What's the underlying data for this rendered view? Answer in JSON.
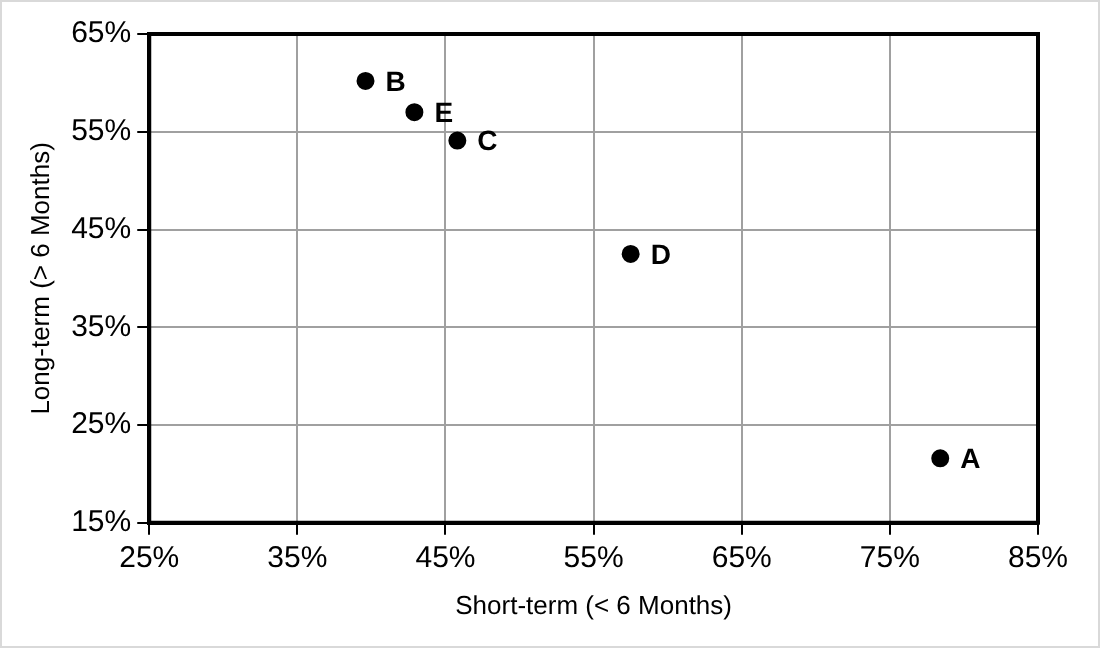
{
  "chart_data": {
    "type": "scatter",
    "xlabel": "Short-term (< 6 Months)",
    "ylabel": "Long-term (> 6 Months)",
    "x": [
      78.4,
      39.6,
      45.8,
      57.5,
      42.9
    ],
    "series": [
      {
        "color": "#000000",
        "values": [
          21.6,
          60.2,
          54.1,
          42.5,
          57.0
        ]
      }
    ],
    "annotations": [
      {
        "text": "A",
        "x": 78.4,
        "y": 21.6
      },
      {
        "text": "B",
        "x": 39.6,
        "y": 60.2
      },
      {
        "text": "C",
        "x": 45.8,
        "y": 54.1
      },
      {
        "text": "D",
        "x": 57.5,
        "y": 42.5
      },
      {
        "text": "E",
        "x": 42.9,
        "y": 57.0
      }
    ],
    "xlim": [
      25,
      85
    ],
    "ylim": [
      15,
      65
    ],
    "xticks": [
      {
        "value": 25,
        "label": "25%"
      },
      {
        "value": 35,
        "label": "35%"
      },
      {
        "value": 45,
        "label": "45%"
      },
      {
        "value": 55,
        "label": "55%"
      },
      {
        "value": 65,
        "label": "65%"
      },
      {
        "value": 75,
        "label": "75%"
      },
      {
        "value": 85,
        "label": "85%"
      }
    ],
    "yticks": [
      {
        "value": 15,
        "label": "15%"
      },
      {
        "value": 25,
        "label": "25%"
      },
      {
        "value": 35,
        "label": "35%"
      },
      {
        "value": 45,
        "label": "45%"
      },
      {
        "value": 55,
        "label": "55%"
      },
      {
        "value": 65,
        "label": "65%"
      }
    ],
    "grid": true,
    "legend": false,
    "marker": "circle"
  }
}
